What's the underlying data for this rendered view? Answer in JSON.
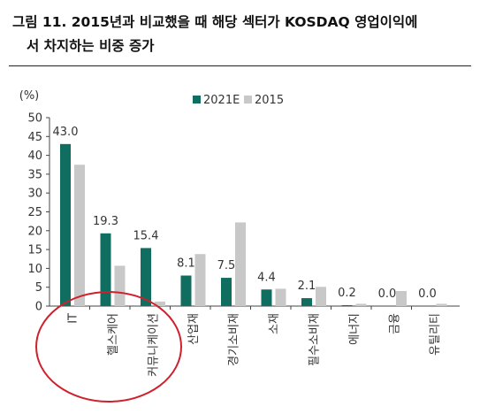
{
  "title": {
    "line1": "그림 11. 2015년과 비교했을 때 해당 섹터가 KOSDAQ 영업이익에",
    "line2": "서 차지하는 비중 증가"
  },
  "colors": {
    "series_2021E": "#0f6e5f",
    "series_2015": "#c8c8c8",
    "annotation_circle": "#d0202c"
  },
  "chart_data": {
    "type": "bar",
    "ylabel": "(%)",
    "ylim": [
      0,
      50
    ],
    "yticks": [
      0,
      5,
      10,
      15,
      20,
      25,
      30,
      35,
      40,
      45,
      50
    ],
    "legend_position": "top-right",
    "categories": [
      "IT",
      "헬스케어",
      "커뮤니케이션",
      "산업재",
      "경기소비재",
      "소재",
      "필수소비재",
      "에너지",
      "금융",
      "유틸리티"
    ],
    "series": [
      {
        "name": "2021E",
        "values": [
          43.0,
          19.3,
          15.4,
          8.1,
          7.5,
          4.4,
          2.1,
          0.2,
          0.0,
          0.0
        ]
      },
      {
        "name": "2015",
        "values": [
          37.5,
          10.7,
          1.2,
          13.8,
          22.2,
          4.6,
          5.1,
          0.6,
          4.0,
          0.6
        ]
      }
    ],
    "data_labels": [
      "43.0",
      "19.3",
      "15.4",
      "8.1",
      "7.5",
      "4.4",
      "2.1",
      "0.2",
      "0.0",
      "0.0"
    ],
    "annotation": "red-ellipse-around-first-three-categories"
  }
}
